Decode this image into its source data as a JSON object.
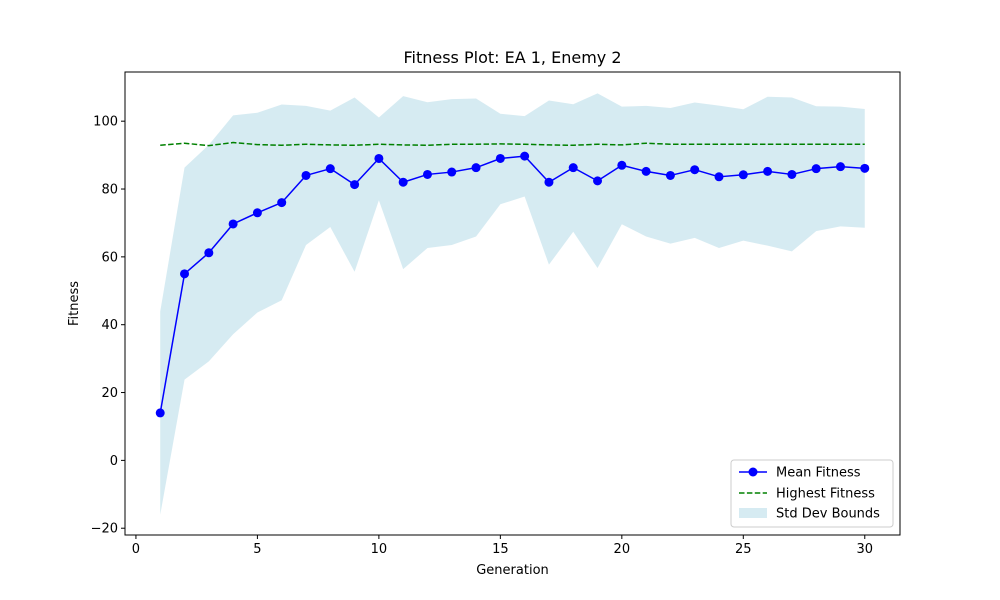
{
  "chart_data": {
    "type": "line",
    "title": "Fitness Plot: EA 1, Enemy 2",
    "xlabel": "Generation",
    "ylabel": "Fitness",
    "xlim": [
      -0.45,
      31.45
    ],
    "ylim": [
      -22,
      114.5
    ],
    "xticks": [
      0,
      5,
      10,
      15,
      20,
      25,
      30
    ],
    "yticks": [
      -20,
      0,
      20,
      40,
      60,
      80,
      100
    ],
    "ytick_labels": [
      "−20",
      "0",
      "20",
      "40",
      "60",
      "80",
      "100"
    ],
    "grid": false,
    "legend_position": "lower-right",
    "x": [
      1,
      2,
      3,
      4,
      5,
      6,
      7,
      8,
      9,
      10,
      11,
      12,
      13,
      14,
      15,
      16,
      17,
      18,
      19,
      20,
      21,
      22,
      23,
      24,
      25,
      26,
      27,
      28,
      29,
      30
    ],
    "series": [
      {
        "name": "Mean Fitness",
        "kind": "line-marker",
        "color": "#0000ff",
        "values": [
          14.0,
          55.0,
          61.2,
          69.7,
          73.0,
          76.0,
          84.0,
          86.0,
          81.3,
          89.0,
          82.0,
          84.3,
          85.0,
          86.3,
          89.0,
          89.7,
          82.0,
          86.3,
          82.4,
          87.0,
          85.2,
          84.0,
          85.7,
          83.6,
          84.2,
          85.2,
          84.3,
          86.0,
          86.6,
          86.1
        ]
      },
      {
        "name": "Highest Fitness",
        "kind": "dashed-line",
        "color": "#008000",
        "values": [
          92.9,
          93.5,
          92.8,
          93.7,
          93.1,
          92.9,
          93.2,
          93.0,
          92.9,
          93.2,
          93.0,
          92.9,
          93.2,
          93.2,
          93.3,
          93.2,
          93.0,
          92.9,
          93.2,
          93.0,
          93.5,
          93.2,
          93.2,
          93.2,
          93.2,
          93.2,
          93.2,
          93.2,
          93.2,
          93.2
        ]
      },
      {
        "name": "Std Dev Bounds",
        "kind": "band",
        "color": "#add8e6",
        "lower": [
          -16.0,
          23.8,
          29.2,
          37.2,
          43.6,
          47.2,
          63.5,
          68.8,
          55.6,
          76.7,
          56.4,
          62.6,
          63.5,
          66.0,
          75.5,
          77.8,
          57.7,
          67.4,
          56.7,
          69.6,
          66.0,
          63.9,
          65.6,
          62.6,
          64.8,
          63.3,
          61.6,
          67.6,
          69.0,
          68.6
        ],
        "upper": [
          43.9,
          86.3,
          93.0,
          101.7,
          102.5,
          104.9,
          104.5,
          103.1,
          107.0,
          101.1,
          107.4,
          105.6,
          106.5,
          106.7,
          102.2,
          101.5,
          106.1,
          105.0,
          108.2,
          104.3,
          104.5,
          103.9,
          105.5,
          104.6,
          103.5,
          107.2,
          107.0,
          104.4,
          104.3,
          103.6
        ]
      }
    ]
  }
}
